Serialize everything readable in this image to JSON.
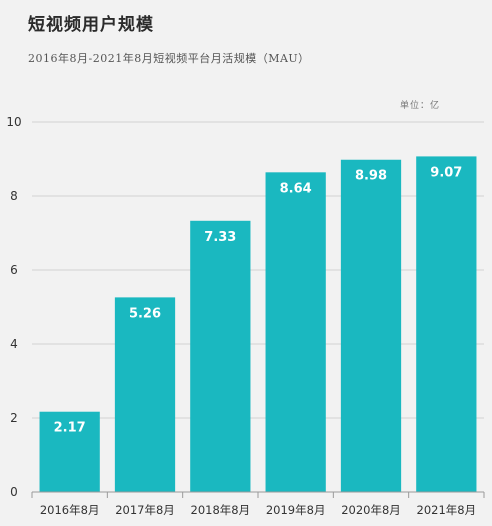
{
  "chart_data": {
    "type": "bar",
    "title": "短视频用户规模",
    "subtitle": "2016年8月-2021年8月短视频平台月活规模（MAU）",
    "unit_label": "单位：亿",
    "categories": [
      "2016年8月",
      "2017年8月",
      "2018年8月",
      "2019年8月",
      "2020年8月",
      "2021年8月"
    ],
    "values": [
      2.17,
      5.26,
      7.33,
      8.64,
      8.98,
      9.07
    ],
    "data_labels": [
      "2.17",
      "5.26",
      "7.33",
      "8.64",
      "8.98",
      "9.07"
    ],
    "ylim": [
      0,
      10
    ],
    "yticks": [
      "0",
      "2",
      "4",
      "6",
      "8",
      "10"
    ],
    "xlabel": "",
    "ylabel": "",
    "grid": true,
    "bar_color": "#1ab8c0",
    "grid_color": "#d2d2d2"
  }
}
